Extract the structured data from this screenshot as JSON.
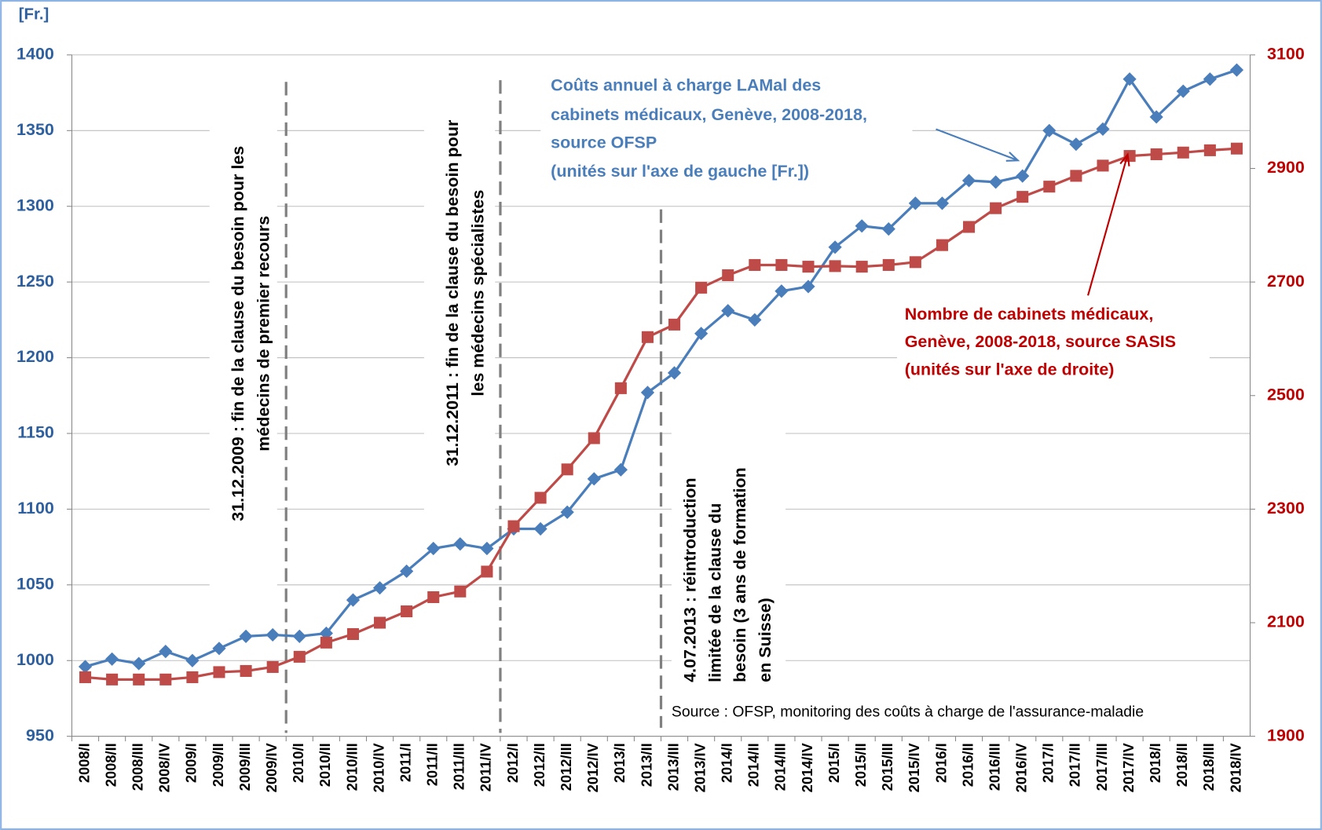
{
  "chart_data": {
    "type": "line",
    "y_label": "[Fr.]",
    "categories": [
      "2008/I",
      "2008/II",
      "2008/III",
      "2008/IV",
      "2009/I",
      "2009/II",
      "2009/III",
      "2009/IV",
      "2010/I",
      "2010/II",
      "2010/III",
      "2010/IV",
      "2011/I",
      "2011/II",
      "2011/III",
      "2011/IV",
      "2012/I",
      "2012/II",
      "2012/III",
      "2012/IV",
      "2013/I",
      "2013/II",
      "2013/III",
      "2013/IV",
      "2014/I",
      "2014/II",
      "2014/III",
      "2014/IV",
      "2015/I",
      "2015/II",
      "2015/III",
      "2015/IV",
      "2016/I",
      "2016/II",
      "2016/III",
      "2016/IV",
      "2017/I",
      "2017/II",
      "2017/III",
      "2017/IV",
      "2018/I",
      "2018/II",
      "2018/III",
      "2018/IV"
    ],
    "series": [
      {
        "label_lines": [
          "Coûts annuel à charge LAMal des",
          "cabinets médicaux, Genève, 2008-2018,",
          "source OFSP",
          "(unités sur l'axe de gauche [Fr.])"
        ],
        "color": "#4a7ebb",
        "marker": "diamond",
        "values": [
          996,
          1001,
          998,
          1006,
          1000,
          1008,
          1016,
          1017,
          1016,
          1018,
          1040,
          1048,
          1059,
          1074,
          1077,
          1074,
          1087,
          1087,
          1098,
          1120,
          1126,
          1177,
          1190,
          1216,
          1231,
          1225,
          1244,
          1247,
          1273,
          1287,
          1285,
          1302,
          1302,
          1317,
          1316,
          1320,
          1350,
          1341,
          1351,
          1384,
          1359,
          1376,
          1384,
          1390
        ]
      },
      {
        "label_lines": [
          "Nombre de cabinets médicaux,",
          "Genève, 2008-2018, source SASIS",
          "(unités sur l'axe de droite)"
        ],
        "color": "#be4b48",
        "label_color": "#c00000",
        "marker": "square",
        "axis": "y2",
        "values": [
          2004,
          2000,
          2000,
          2000,
          2004,
          2013,
          2015,
          2022,
          2040,
          2065,
          2080,
          2100,
          2120,
          2145,
          2155,
          2190,
          2270,
          2320,
          2370,
          2425,
          2513,
          2603,
          2625,
          2690,
          2712,
          2730,
          2730,
          2727,
          2728,
          2727,
          2730,
          2735,
          2765,
          2797,
          2830,
          2850,
          2868,
          2887,
          2905,
          2922,
          2925,
          2928,
          2932,
          2935
        ]
      }
    ],
    "ylim": [
      950,
      1400
    ],
    "yticks": [
      950,
      1000,
      1050,
      1100,
      1150,
      1200,
      1250,
      1300,
      1350,
      1400
    ],
    "y2lim": [
      1900,
      3100
    ],
    "y2ticks": [
      1900,
      2100,
      2300,
      2500,
      2700,
      2900,
      3100
    ],
    "grid": true,
    "annotations": [
      {
        "lines": [
          "31.12.2009 : fin de la clause du besoin pour les",
          "médecins de premier recours"
        ]
      },
      {
        "lines": [
          "31.12.2011 : fin de la clause du besoin pour",
          "les médecins spécialistes"
        ]
      },
      {
        "lines": [
          "4.07.2013 : réintroduction",
          "limitée de la clause du",
          "besoin (3 ans de formation",
          "en Suisse)"
        ]
      }
    ],
    "source": "Source : OFSP, monitoring des coûts à charge de l'assurance-maladie"
  }
}
